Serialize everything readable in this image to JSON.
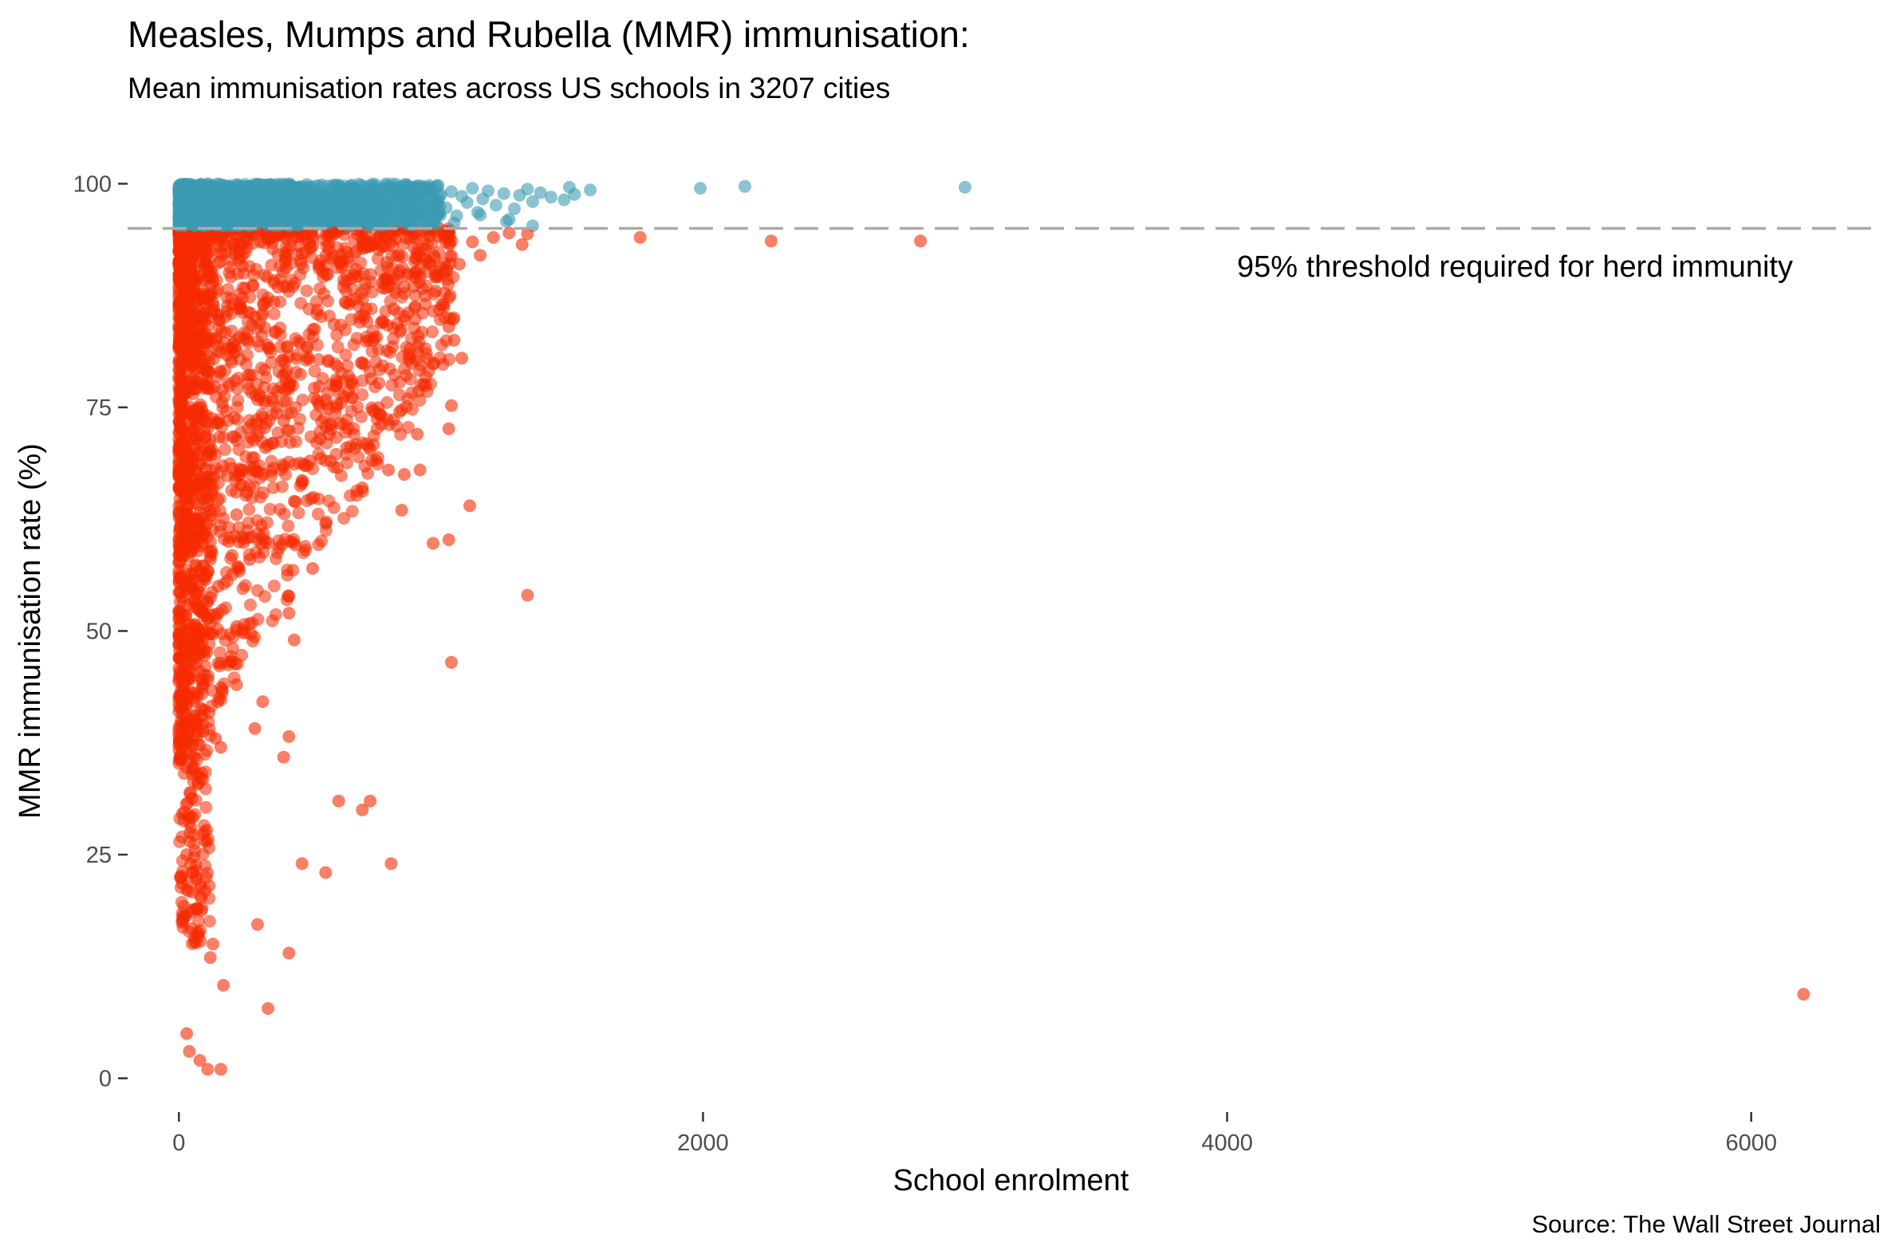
{
  "chart_data": {
    "type": "scatter",
    "title": "Measles, Mumps and Rubella (MMR) immunisation:",
    "subtitle": "Mean immunisation rates across US schools in 3207 cities",
    "xlabel": "School enrolment",
    "ylabel": "MMR immunisation rate (%)",
    "caption": "Source: The Wall Street Journal",
    "xlim": [
      -150,
      6500
    ],
    "ylim": [
      -2,
      102
    ],
    "x_ticks": [
      0,
      2000,
      4000,
      6000
    ],
    "x_tick_labels": [
      "0",
      "2000",
      "4000",
      "6000"
    ],
    "y_ticks": [
      0,
      25,
      50,
      75,
      100
    ],
    "y_tick_labels": [
      "0",
      "25",
      "50",
      "75",
      "100"
    ],
    "grid": false,
    "legend": "none",
    "colors": {
      "above_threshold": "#3d9bb3",
      "below_threshold": "#f52a00",
      "threshold_line": "#aaaaaa"
    },
    "threshold": {
      "value": 95,
      "label": "95% threshold required for herd immunity"
    },
    "series": [
      {
        "group": "above_threshold",
        "points": [
          [
            1990,
            99.5
          ],
          [
            2160,
            99.7
          ],
          [
            3000,
            99.6
          ],
          [
            1570,
            99.3
          ],
          [
            1510,
            98.8
          ],
          [
            1490,
            99.6
          ],
          [
            1470,
            98.2
          ],
          [
            1420,
            98.5
          ],
          [
            1380,
            99.0
          ],
          [
            1350,
            98.0
          ],
          [
            1330,
            99.4
          ],
          [
            1300,
            98.7
          ],
          [
            1280,
            97.2
          ],
          [
            1260,
            96.0
          ],
          [
            1240,
            98.9
          ],
          [
            1210,
            97.6
          ],
          [
            1180,
            99.2
          ],
          [
            1160,
            98.3
          ],
          [
            1140,
            96.8
          ],
          [
            1120,
            99.5
          ],
          [
            1100,
            97.9
          ],
          [
            1080,
            98.6
          ],
          [
            1060,
            96.4
          ],
          [
            1040,
            99.1
          ],
          [
            1020,
            97.3
          ],
          [
            1000,
            98.8
          ],
          [
            980,
            99.6
          ],
          [
            960,
            96.2
          ],
          [
            940,
            97.8
          ],
          [
            920,
            99.3
          ],
          [
            1350,
            95.3
          ],
          [
            1250,
            95.8
          ],
          [
            1150,
            96.5
          ],
          [
            1050,
            95.6
          ]
        ],
        "note": "dense band of points between 95 and 100 for enrolment 0-1000"
      },
      {
        "group": "below_threshold",
        "points": [
          [
            1760,
            94.0
          ],
          [
            2260,
            93.6
          ],
          [
            2830,
            93.6
          ],
          [
            6200,
            9.4
          ],
          [
            1330,
            54.0
          ],
          [
            1040,
            46.5
          ],
          [
            1030,
            60.2
          ],
          [
            970,
            59.8
          ],
          [
            1110,
            64.0
          ],
          [
            1030,
            72.6
          ],
          [
            1040,
            75.2
          ],
          [
            920,
            68.0
          ],
          [
            910,
            72.0
          ],
          [
            1080,
            80.5
          ],
          [
            1050,
            82.5
          ],
          [
            1030,
            84.0
          ],
          [
            1010,
            86.5
          ],
          [
            980,
            88.0
          ],
          [
            1070,
            91.0
          ],
          [
            1120,
            93.5
          ],
          [
            1150,
            92.0
          ],
          [
            1200,
            94.0
          ],
          [
            1260,
            94.5
          ],
          [
            1310,
            93.2
          ],
          [
            1330,
            94.4
          ],
          [
            850,
            63.5
          ],
          [
            860,
            67.5
          ],
          [
            800,
            68.0
          ],
          [
            810,
            24.0
          ],
          [
            730,
            31.0
          ],
          [
            700,
            30.0
          ],
          [
            610,
            31.0
          ],
          [
            560,
            23.0
          ],
          [
            470,
            24.0
          ],
          [
            440,
            49.0
          ],
          [
            420,
            52.0
          ],
          [
            420,
            53.9
          ],
          [
            420,
            38.2
          ],
          [
            400,
            35.9
          ],
          [
            420,
            14.0
          ],
          [
            320,
            42.1
          ],
          [
            290,
            39.1
          ],
          [
            300,
            17.2
          ],
          [
            340,
            7.8
          ],
          [
            220,
            50.5
          ],
          [
            220,
            44.0
          ],
          [
            140,
            38.0
          ],
          [
            160,
            37.0
          ],
          [
            170,
            10.4
          ],
          [
            160,
            1.0
          ],
          [
            110,
            1.0
          ],
          [
            80,
            2.0
          ],
          [
            40,
            3.0
          ],
          [
            30,
            5.0
          ],
          [
            130,
            15.0
          ],
          [
            120,
            13.5
          ],
          [
            100,
            21.0
          ],
          [
            70,
            19.0
          ],
          [
            50,
            23.0
          ],
          [
            30,
            25.0
          ],
          [
            150,
            55.0
          ],
          [
            120,
            58.0
          ],
          [
            190,
            60.0
          ],
          [
            220,
            63.0
          ],
          [
            260,
            65.5
          ],
          [
            280,
            68.0
          ],
          [
            330,
            70.5
          ],
          [
            360,
            71.0
          ],
          [
            400,
            73.5
          ],
          [
            440,
            64.5
          ],
          [
            470,
            66.5
          ],
          [
            500,
            69.0
          ],
          [
            540,
            71.5
          ],
          [
            580,
            73.0
          ],
          [
            620,
            75.5
          ],
          [
            660,
            78.0
          ],
          [
            700,
            80.0
          ],
          [
            740,
            82.5
          ],
          [
            780,
            84.5
          ],
          [
            820,
            86.0
          ],
          [
            860,
            88.5
          ],
          [
            900,
            90.0
          ],
          [
            940,
            91.5
          ],
          [
            700,
            66.0
          ],
          [
            640,
            70.5
          ],
          [
            560,
            62.0
          ],
          [
            510,
            57.0
          ],
          [
            330,
            60.0
          ],
          [
            270,
            58.0
          ]
        ],
        "note": "dense cloud of points concentrated at enrolment 0-1000 and rate 0-95"
      }
    ]
  }
}
